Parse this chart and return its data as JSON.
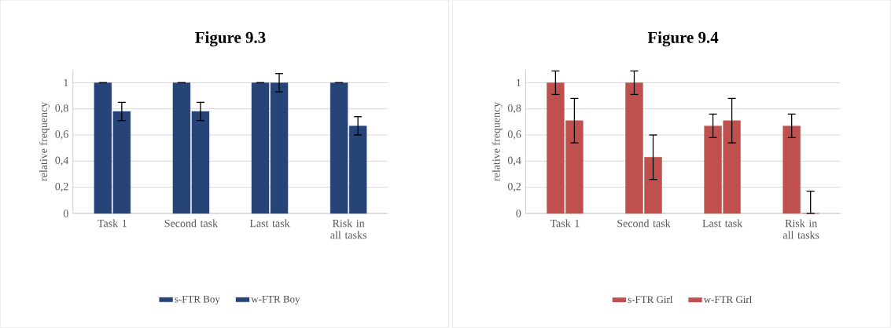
{
  "chart_data": [
    {
      "type": "bar",
      "title": "Figure 9.3",
      "ylabel": "relative frequency",
      "categories": [
        "Task 1",
        "Second task",
        "Last task",
        "Risk in all tasks"
      ],
      "series": [
        {
          "name": "s-FTR Boy",
          "color": "#264478",
          "values": [
            1,
            1,
            1,
            1
          ],
          "errors": [
            0,
            0,
            0,
            0
          ]
        },
        {
          "name": "w-FTR Boy",
          "color": "#264478",
          "values": [
            0.78,
            0.78,
            1.0,
            0.67
          ],
          "errors": [
            0.07,
            0.07,
            0.07,
            0.07
          ]
        }
      ],
      "ylim": [
        0,
        1.1
      ],
      "yticks": [
        0,
        {
          "value": 0.2,
          "label": "0,2"
        },
        {
          "value": 0.4,
          "label": "0,4"
        },
        {
          "value": 0.6,
          "label": "0,6"
        },
        {
          "value": 0.8,
          "label": "0,8"
        },
        1
      ],
      "grid": "y",
      "legend": "bottom"
    },
    {
      "type": "bar",
      "title": "Figure 9.4",
      "ylabel": "relative frequency",
      "categories": [
        "Task 1",
        "Second task",
        "Last task",
        "Risk in all tasks"
      ],
      "series": [
        {
          "name": "s-FTR Girl",
          "color": "#c0504d",
          "values": [
            1,
            1,
            0.67,
            0.67
          ],
          "errors": [
            0.09,
            0.09,
            0.09,
            0.09
          ]
        },
        {
          "name": "w-FTR Girl",
          "color": "#c0504d",
          "values": [
            0.71,
            0.43,
            0.71,
            0
          ],
          "errors": [
            0.17,
            0.17,
            0.17,
            [
              0,
              0.17
            ]
          ]
        }
      ],
      "ylim": [
        0,
        1.1
      ],
      "yticks": [
        0,
        {
          "value": 0.2,
          "label": "0,2"
        },
        {
          "value": 0.4,
          "label": "0,4"
        },
        {
          "value": 0.6,
          "label": "0,6"
        },
        {
          "value": 0.8,
          "label": "0,8"
        },
        1
      ],
      "grid": "y",
      "legend": "bottom"
    }
  ]
}
